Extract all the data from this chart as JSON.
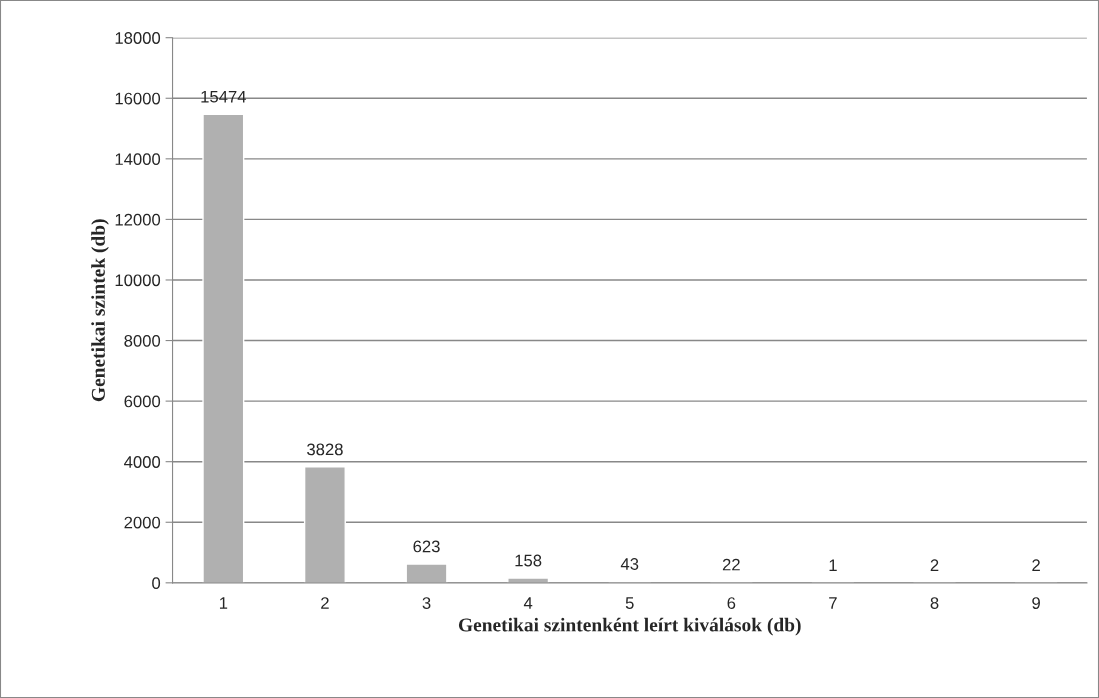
{
  "chart_data": {
    "type": "bar",
    "xlabel": "Genetikai szintenként leírt kiválások (db)",
    "ylabel": "Genetikai szintek (db)",
    "categories": [
      "1",
      "2",
      "3",
      "4",
      "5",
      "6",
      "7",
      "8",
      "9"
    ],
    "values": [
      15474,
      3828,
      623,
      158,
      43,
      22,
      1,
      2,
      2
    ],
    "color": "#b0b0b0",
    "ylim": [
      0,
      18000
    ],
    "yticks": [
      0,
      2000,
      4000,
      6000,
      8000,
      10000,
      12000,
      14000,
      16000,
      18000
    ],
    "grid": "y",
    "data_labels": true,
    "legend": false
  }
}
